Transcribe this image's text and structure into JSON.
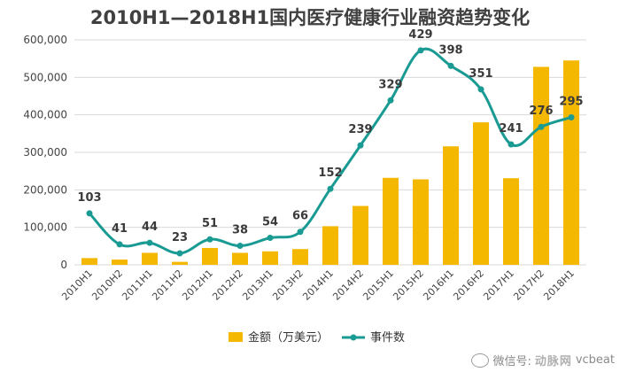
{
  "chart_data": {
    "type": "bar",
    "title": "2010H1—2018H1国内医疗健康行业融资趋势变化",
    "categories": [
      "2010H1",
      "2010H2",
      "2011H1",
      "2011H2",
      "2012H1",
      "2012H2",
      "2013H1",
      "2013H2",
      "2014H1",
      "2014H2",
      "2015H1",
      "2015H2",
      "2016H1",
      "2016H2",
      "2017H1",
      "2017H2",
      "2018H1"
    ],
    "ylim": [
      0,
      600000
    ],
    "yticks": [
      "0",
      "100,000",
      "200,000",
      "300,000",
      "400,000",
      "500,000",
      "600,000"
    ],
    "ytick_values": [
      0,
      100000,
      200000,
      300000,
      400000,
      500000,
      600000
    ],
    "grid": true,
    "legend_position": "bottom",
    "series": [
      {
        "name": "金额（万美元）",
        "type": "bar",
        "color": "#F5B800",
        "values": [
          18000,
          14000,
          32000,
          8000,
          45000,
          32000,
          36000,
          42000,
          103000,
          157000,
          232000,
          228000,
          316000,
          380000,
          231000,
          528000,
          545000
        ]
      },
      {
        "name": "事件数",
        "type": "line",
        "color": "#199A93",
        "values": [
          103,
          41,
          44,
          23,
          51,
          38,
          54,
          66,
          152,
          239,
          329,
          429,
          398,
          351,
          241,
          276,
          295
        ],
        "scale_max": 450
      }
    ]
  },
  "watermark": {
    "prefix": "微信号:",
    "account": "vcbeat",
    "brand": "动脉网"
  }
}
